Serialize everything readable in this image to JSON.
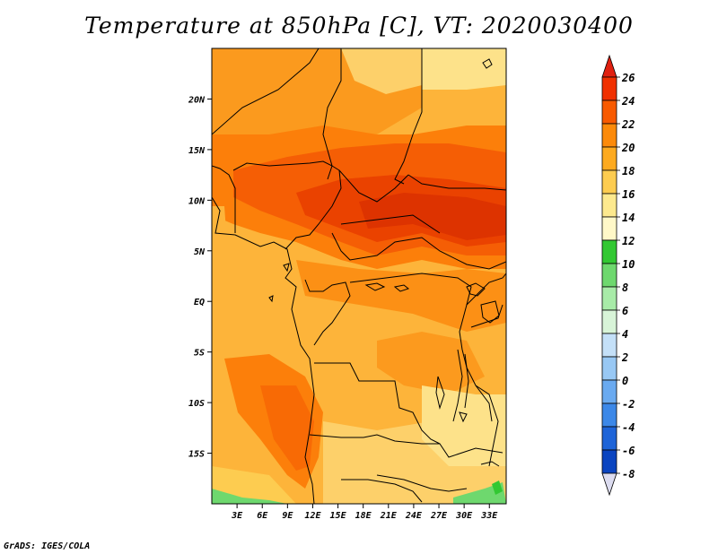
{
  "title": "Temperature at 850hPa [C], VT: 2020030400",
  "footer": "GrADS: IGES/COLA",
  "map": {
    "lon_range": [
      0,
      35
    ],
    "lat_range": [
      -20,
      25
    ],
    "lat_labels": [
      "20N",
      "15N",
      "10N",
      "5N",
      "EQ",
      "5S",
      "10S",
      "15S"
    ],
    "lat_values": [
      20,
      15,
      10,
      5,
      0,
      -5,
      -10,
      -15
    ],
    "lon_labels": [
      "3E",
      "6E",
      "9E",
      "12E",
      "15E",
      "18E",
      "21E",
      "24E",
      "27E",
      "30E",
      "33E"
    ],
    "lon_values": [
      3,
      6,
      9,
      12,
      15,
      18,
      21,
      24,
      27,
      30,
      33
    ]
  },
  "colorbar": {
    "labels": [
      "26",
      "24",
      "22",
      "20",
      "18",
      "16",
      "14",
      "12",
      "10",
      "8",
      "6",
      "4",
      "2",
      "0",
      "-2",
      "-4",
      "-6",
      "-8"
    ],
    "colors": [
      "#f03000",
      "#f85a00",
      "#fc8a0a",
      "#fdaa20",
      "#fdcc50",
      "#fde98e",
      "#fff8c8",
      "#32c832",
      "#6ed86e",
      "#a8eba8",
      "#d8f4d8",
      "#c4e0f8",
      "#98c8f4",
      "#6aaaf0",
      "#3c88e8",
      "#1e64d8",
      "#0a44c0",
      "#002896",
      "#0a0a64"
    ],
    "top_color": "#e02010",
    "bottom_color": "#dcdcf0"
  }
}
